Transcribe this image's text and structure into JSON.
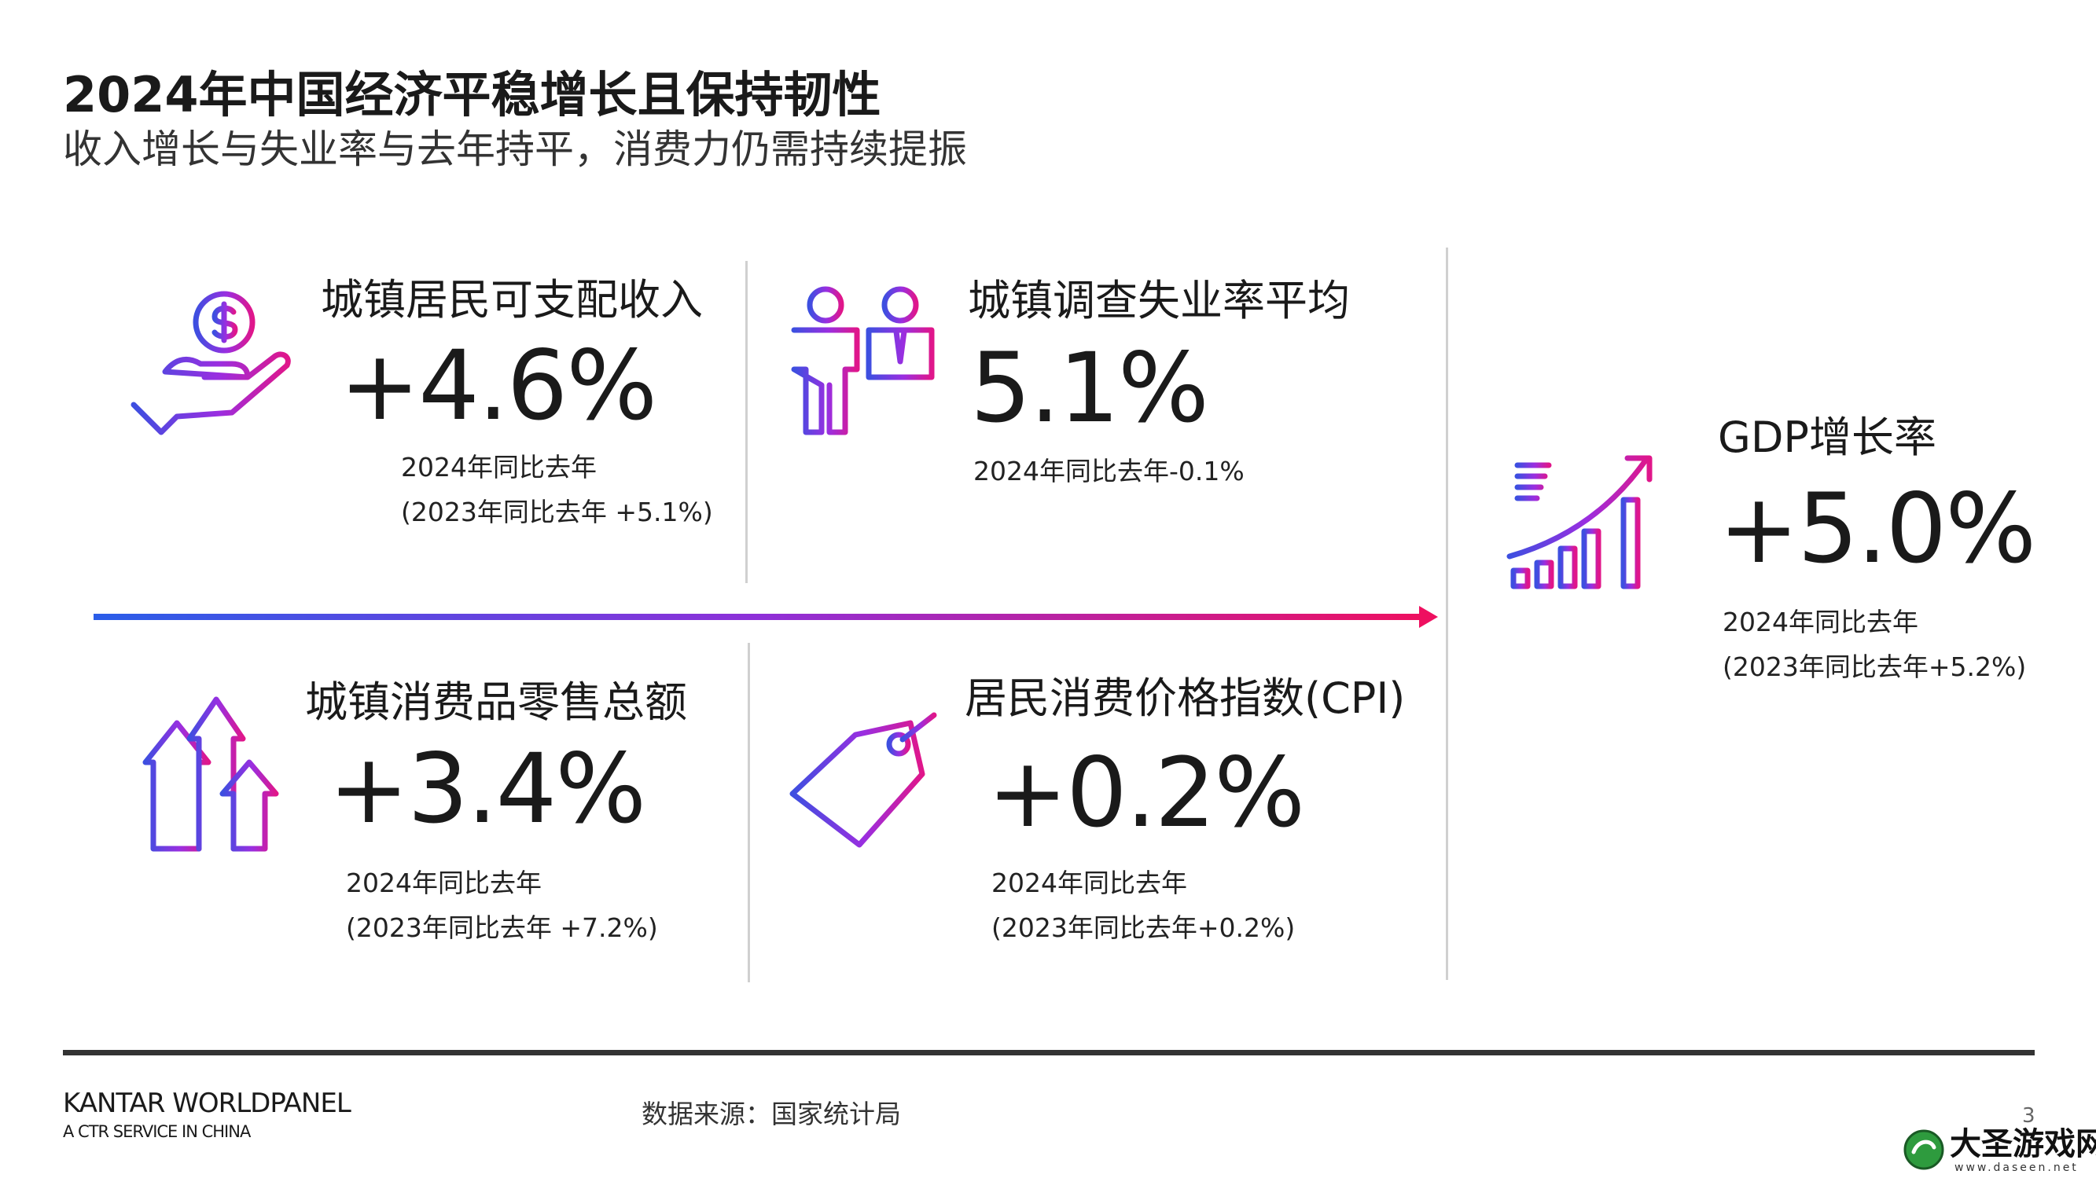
{
  "header": {
    "title": "2024年中国经济平稳增长且保持韧性",
    "subtitle": "收入增长与失业率与去年持平，消费力仍需持续提振"
  },
  "metrics": [
    {
      "label": "城镇居民可支配收入",
      "value": "+4.6%",
      "notes": [
        "2024年同比去年",
        "(2023年同比去年 +5.1%)"
      ]
    },
    {
      "label": "城镇调查失业率平均",
      "value": "5.1%",
      "notes": [
        "2024年同比去年-0.1%"
      ]
    },
    {
      "label": "城镇消费品零售总额",
      "value": "+3.4%",
      "notes": [
        "2024年同比去年",
        "(2023年同比去年 +7.2%)"
      ]
    },
    {
      "label": "居民消费价格指数(CPI)",
      "value": "+0.2%",
      "notes": [
        "2024年同比去年",
        "(2023年同比去年+0.2%)"
      ]
    },
    {
      "label": "GDP增长率",
      "value": "+5.0%",
      "notes": [
        "2024年同比去年",
        "(2023年同比去年+5.2%)"
      ]
    }
  ],
  "footer": {
    "brand": "KANTAR WORLDPANEL",
    "brand_sub": "A CTR SERVICE IN CHINA",
    "source": "数据来源：国家统计局",
    "page_number": "3"
  },
  "watermark": {
    "name": "大圣游戏网",
    "url": "www.daseen.net"
  }
}
